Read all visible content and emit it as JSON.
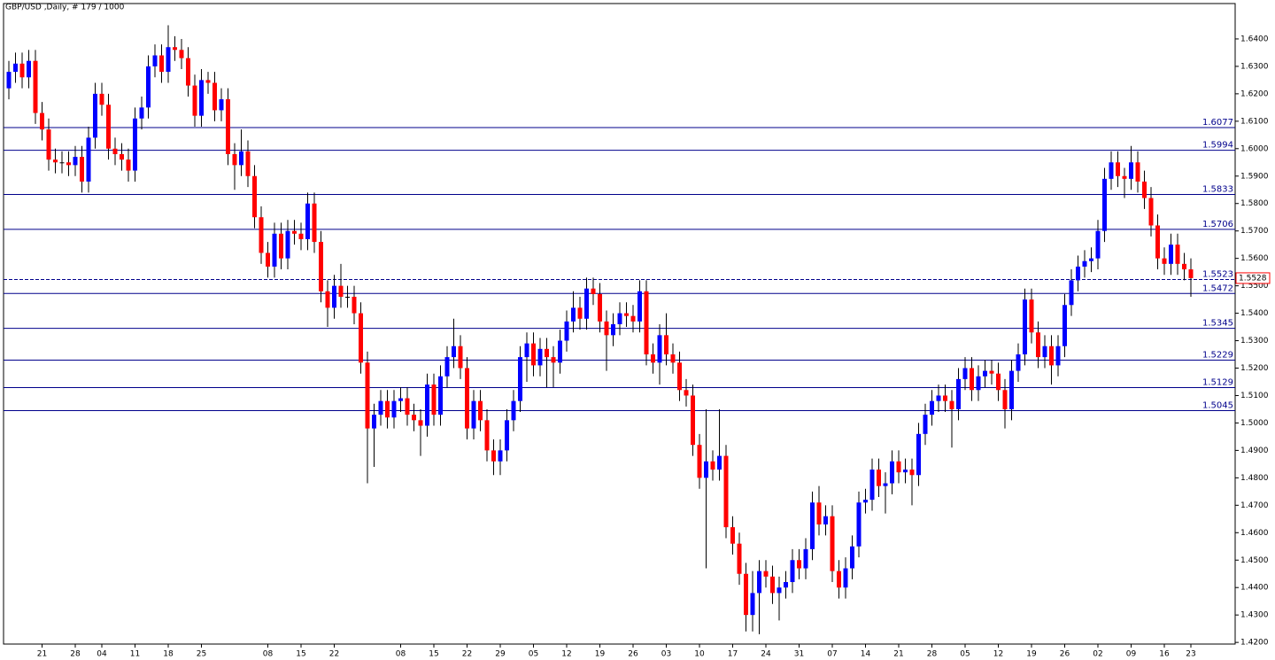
{
  "chart_data": {
    "type": "candlestick",
    "title": "GBP/USD ,Daily, # 179 / 1000",
    "categories": [
      null,
      null,
      null,
      null,
      null,
      "21",
      null,
      null,
      null,
      null,
      "28",
      null,
      null,
      null,
      "04",
      null,
      null,
      null,
      null,
      "11",
      null,
      null,
      null,
      null,
      "18",
      null,
      null,
      null,
      null,
      "25",
      null,
      null,
      null,
      null,
      null,
      null,
      null,
      null,
      null,
      "08",
      null,
      null,
      null,
      null,
      "15",
      null,
      null,
      null,
      null,
      "22",
      null,
      null,
      null,
      null,
      null,
      null,
      null,
      null,
      null,
      "08",
      null,
      null,
      null,
      null,
      "15",
      null,
      null,
      null,
      null,
      "22",
      null,
      null,
      null,
      null,
      "29",
      null,
      null,
      null,
      null,
      "05",
      null,
      null,
      null,
      null,
      "12",
      null,
      null,
      null,
      null,
      "19",
      null,
      null,
      null,
      null,
      "26",
      null,
      null,
      null,
      null,
      "03",
      null,
      null,
      null,
      null,
      "10",
      null,
      null,
      null,
      null,
      "17",
      null,
      null,
      null,
      null,
      "24",
      null,
      null,
      null,
      null,
      "31",
      null,
      null,
      null,
      null,
      "07",
      null,
      null,
      null,
      null,
      "14",
      null,
      null,
      null,
      null,
      "21",
      null,
      null,
      null,
      null,
      "28",
      null,
      null,
      null,
      null,
      "05",
      null,
      null,
      null,
      null,
      "12",
      null,
      null,
      null,
      null,
      "19",
      null,
      null,
      null,
      null,
      "26",
      null,
      null,
      null,
      null,
      "02",
      null,
      null,
      null,
      null,
      "09",
      null,
      null,
      null,
      null,
      "16",
      null,
      null,
      null,
      "23"
    ],
    "open": [
      1.622,
      1.628,
      1.631,
      1.626,
      1.632,
      1.613,
      1.607,
      1.596,
      1.595,
      1.595,
      1.594,
      1.597,
      1.588,
      1.604,
      1.62,
      1.616,
      1.6,
      1.598,
      1.596,
      1.592,
      1.611,
      1.615,
      1.63,
      1.634,
      1.628,
      1.637,
      1.636,
      1.633,
      1.623,
      1.612,
      1.625,
      1.624,
      1.614,
      1.618,
      1.598,
      1.594,
      1.599,
      1.59,
      1.575,
      1.562,
      1.557,
      1.569,
      1.56,
      1.57,
      1.569,
      1.567,
      1.58,
      1.566,
      1.548,
      1.542,
      1.55,
      1.546,
      1.546,
      1.54,
      1.522,
      1.498,
      1.503,
      1.508,
      1.502,
      1.508,
      1.509,
      1.503,
      1.501,
      1.499,
      1.514,
      1.503,
      1.517,
      1.524,
      1.528,
      1.52,
      1.498,
      1.508,
      1.501,
      1.49,
      1.486,
      1.49,
      1.501,
      1.508,
      1.524,
      1.529,
      1.521,
      1.527,
      1.524,
      1.522,
      1.53,
      1.537,
      1.542,
      1.538,
      1.549,
      1.547,
      1.537,
      1.532,
      1.536,
      1.54,
      1.539,
      1.537,
      1.548,
      1.525,
      1.522,
      1.532,
      1.525,
      1.522,
      1.512,
      1.51,
      1.492,
      1.48,
      1.486,
      1.483,
      1.488,
      1.462,
      1.456,
      1.445,
      1.43,
      1.438,
      1.446,
      1.444,
      1.438,
      1.44,
      1.442,
      1.45,
      1.447,
      1.454,
      1.471,
      1.463,
      1.466,
      1.446,
      1.44,
      1.447,
      1.455,
      1.471,
      1.472,
      1.483,
      1.477,
      1.478,
      1.486,
      1.482,
      1.483,
      1.481,
      1.496,
      1.503,
      1.508,
      1.51,
      1.508,
      1.505,
      1.516,
      1.52,
      1.512,
      1.517,
      1.519,
      1.518,
      1.512,
      1.505,
      1.519,
      1.525,
      1.545,
      1.533,
      1.524,
      1.528,
      1.521,
      1.528,
      1.543,
      1.552,
      1.557,
      1.559,
      1.56,
      1.57,
      1.589,
      1.595,
      1.59,
      1.589,
      1.595,
      1.588,
      1.582,
      1.572,
      1.56,
      1.558,
      1.565,
      1.558,
      1.556
    ],
    "high": [
      1.632,
      1.635,
      1.635,
      1.636,
      1.636,
      1.617,
      1.611,
      1.6,
      1.599,
      1.599,
      1.601,
      1.601,
      1.608,
      1.624,
      1.624,
      1.62,
      1.604,
      1.602,
      1.6,
      1.615,
      1.619,
      1.634,
      1.638,
      1.638,
      1.645,
      1.641,
      1.64,
      1.637,
      1.627,
      1.629,
      1.628,
      1.628,
      1.622,
      1.622,
      1.602,
      1.607,
      1.603,
      1.594,
      1.579,
      1.566,
      1.573,
      1.573,
      1.574,
      1.574,
      1.573,
      1.584,
      1.584,
      1.57,
      1.552,
      1.554,
      1.558,
      1.55,
      1.55,
      1.544,
      1.526,
      1.507,
      1.512,
      1.512,
      1.512,
      1.513,
      1.513,
      1.507,
      1.505,
      1.518,
      1.518,
      1.521,
      1.528,
      1.538,
      1.532,
      1.524,
      1.512,
      1.512,
      1.505,
      1.494,
      1.494,
      1.505,
      1.512,
      1.528,
      1.533,
      1.533,
      1.531,
      1.531,
      1.528,
      1.534,
      1.541,
      1.548,
      1.546,
      1.553,
      1.553,
      1.551,
      1.541,
      1.54,
      1.544,
      1.544,
      1.543,
      1.552,
      1.552,
      1.529,
      1.536,
      1.54,
      1.529,
      1.526,
      1.516,
      1.514,
      1.496,
      1.505,
      1.49,
      1.505,
      1.492,
      1.466,
      1.46,
      1.449,
      1.446,
      1.45,
      1.45,
      1.448,
      1.444,
      1.446,
      1.454,
      1.454,
      1.458,
      1.475,
      1.477,
      1.47,
      1.47,
      1.45,
      1.451,
      1.459,
      1.475,
      1.476,
      1.487,
      1.487,
      1.482,
      1.49,
      1.49,
      1.487,
      1.487,
      1.5,
      1.507,
      1.512,
      1.514,
      1.514,
      1.512,
      1.52,
      1.524,
      1.524,
      1.521,
      1.523,
      1.523,
      1.522,
      1.516,
      1.523,
      1.529,
      1.549,
      1.549,
      1.537,
      1.532,
      1.532,
      1.532,
      1.547,
      1.556,
      1.561,
      1.563,
      1.564,
      1.574,
      1.593,
      1.599,
      1.599,
      1.593,
      1.601,
      1.599,
      1.592,
      1.586,
      1.576,
      1.564,
      1.569,
      1.569,
      1.562,
      1.56
    ],
    "low": [
      1.618,
      1.624,
      1.622,
      1.622,
      1.609,
      1.603,
      1.592,
      1.591,
      1.591,
      1.59,
      1.59,
      1.584,
      1.584,
      1.6,
      1.612,
      1.596,
      1.594,
      1.592,
      1.588,
      1.588,
      1.607,
      1.611,
      1.626,
      1.624,
      1.624,
      1.632,
      1.629,
      1.619,
      1.608,
      1.608,
      1.62,
      1.61,
      1.61,
      1.594,
      1.585,
      1.59,
      1.586,
      1.571,
      1.558,
      1.553,
      1.553,
      1.556,
      1.556,
      1.565,
      1.563,
      1.563,
      1.562,
      1.544,
      1.535,
      1.538,
      1.542,
      1.542,
      1.536,
      1.518,
      1.478,
      1.484,
      1.499,
      1.498,
      1.498,
      1.504,
      1.499,
      1.497,
      1.488,
      1.495,
      1.499,
      1.499,
      1.513,
      1.52,
      1.516,
      1.494,
      1.494,
      1.497,
      1.486,
      1.481,
      1.481,
      1.486,
      1.497,
      1.504,
      1.515,
      1.517,
      1.517,
      1.513,
      1.513,
      1.518,
      1.526,
      1.533,
      1.534,
      1.534,
      1.543,
      1.533,
      1.519,
      1.528,
      1.532,
      1.535,
      1.533,
      1.533,
      1.521,
      1.518,
      1.514,
      1.521,
      1.518,
      1.508,
      1.506,
      1.488,
      1.476,
      1.447,
      1.479,
      1.479,
      1.458,
      1.452,
      1.441,
      1.424,
      1.424,
      1.423,
      1.44,
      1.434,
      1.428,
      1.436,
      1.438,
      1.443,
      1.443,
      1.45,
      1.459,
      1.459,
      1.442,
      1.436,
      1.436,
      1.443,
      1.451,
      1.467,
      1.468,
      1.473,
      1.467,
      1.474,
      1.478,
      1.478,
      1.47,
      1.477,
      1.492,
      1.499,
      1.504,
      1.504,
      1.491,
      1.501,
      1.512,
      1.508,
      1.508,
      1.513,
      1.514,
      1.508,
      1.498,
      1.501,
      1.515,
      1.521,
      1.529,
      1.52,
      1.52,
      1.514,
      1.517,
      1.524,
      1.539,
      1.548,
      1.553,
      1.555,
      1.556,
      1.566,
      1.585,
      1.586,
      1.582,
      1.585,
      1.584,
      1.578,
      1.568,
      1.556,
      1.554,
      1.554,
      1.554,
      1.552,
      1.546
    ],
    "close": [
      1.628,
      1.631,
      1.626,
      1.632,
      1.613,
      1.607,
      1.596,
      1.595,
      1.595,
      1.594,
      1.597,
      1.588,
      1.604,
      1.62,
      1.616,
      1.6,
      1.598,
      1.596,
      1.592,
      1.611,
      1.615,
      1.63,
      1.634,
      1.628,
      1.637,
      1.636,
      1.633,
      1.623,
      1.612,
      1.625,
      1.624,
      1.614,
      1.618,
      1.598,
      1.594,
      1.599,
      1.59,
      1.575,
      1.562,
      1.557,
      1.569,
      1.56,
      1.57,
      1.569,
      1.567,
      1.58,
      1.566,
      1.548,
      1.542,
      1.55,
      1.546,
      1.546,
      1.54,
      1.522,
      1.498,
      1.503,
      1.508,
      1.502,
      1.508,
      1.509,
      1.503,
      1.501,
      1.499,
      1.514,
      1.503,
      1.517,
      1.524,
      1.528,
      1.52,
      1.498,
      1.508,
      1.501,
      1.49,
      1.486,
      1.49,
      1.501,
      1.508,
      1.524,
      1.529,
      1.521,
      1.527,
      1.524,
      1.522,
      1.53,
      1.537,
      1.542,
      1.538,
      1.549,
      1.547,
      1.537,
      1.532,
      1.536,
      1.54,
      1.539,
      1.537,
      1.548,
      1.525,
      1.522,
      1.532,
      1.525,
      1.522,
      1.512,
      1.51,
      1.492,
      1.48,
      1.486,
      1.483,
      1.488,
      1.462,
      1.456,
      1.445,
      1.43,
      1.438,
      1.446,
      1.444,
      1.438,
      1.44,
      1.442,
      1.45,
      1.447,
      1.454,
      1.471,
      1.463,
      1.466,
      1.446,
      1.44,
      1.447,
      1.455,
      1.471,
      1.472,
      1.483,
      1.477,
      1.478,
      1.486,
      1.482,
      1.483,
      1.481,
      1.496,
      1.503,
      1.508,
      1.51,
      1.508,
      1.505,
      1.516,
      1.52,
      1.512,
      1.517,
      1.519,
      1.518,
      1.512,
      1.505,
      1.519,
      1.525,
      1.545,
      1.533,
      1.524,
      1.528,
      1.521,
      1.528,
      1.543,
      1.552,
      1.557,
      1.559,
      1.56,
      1.57,
      1.589,
      1.595,
      1.59,
      1.589,
      1.595,
      1.588,
      1.582,
      1.572,
      1.56,
      1.558,
      1.565,
      1.558,
      1.556,
      1.5528
    ],
    "up_color": "#0000ff",
    "down_color": "#ff0000",
    "wick_color": "#000000",
    "ylim": [
      1.4194,
      1.6529
    ],
    "yticks": [
      {
        "value": 1.42,
        "label": "1.4200"
      },
      {
        "value": 1.43,
        "label": "1.4300"
      },
      {
        "value": 1.44,
        "label": "1.4400"
      },
      {
        "value": 1.45,
        "label": "1.4500"
      },
      {
        "value": 1.46,
        "label": "1.4600"
      },
      {
        "value": 1.47,
        "label": "1.4700"
      },
      {
        "value": 1.48,
        "label": "1.4800"
      },
      {
        "value": 1.49,
        "label": "1.4900"
      },
      {
        "value": 1.5,
        "label": "1.5000"
      },
      {
        "value": 1.51,
        "label": "1.5100"
      },
      {
        "value": 1.52,
        "label": "1.5200"
      },
      {
        "value": 1.53,
        "label": "1.5300"
      },
      {
        "value": 1.54,
        "label": "1.5400"
      },
      {
        "value": 1.55,
        "label": "1.5500"
      },
      {
        "value": 1.56,
        "label": "1.5600"
      },
      {
        "value": 1.57,
        "label": "1.5700"
      },
      {
        "value": 1.58,
        "label": "1.5800"
      },
      {
        "value": 1.59,
        "label": "1.5900"
      },
      {
        "value": 1.6,
        "label": "1.6000"
      },
      {
        "value": 1.61,
        "label": "1.6100"
      },
      {
        "value": 1.62,
        "label": "1.6200"
      },
      {
        "value": 1.63,
        "label": "1.6300"
      },
      {
        "value": 1.64,
        "label": "1.6400"
      }
    ],
    "levels": [
      1.6077,
      1.5994,
      1.5833,
      1.5706,
      1.5523,
      1.5472,
      1.5345,
      1.5229,
      1.5129,
      1.5045
    ],
    "level_styles": [
      "solid",
      "solid",
      "solid",
      "solid",
      "dashed",
      "solid",
      "solid",
      "solid",
      "solid",
      "solid"
    ],
    "level_color": "#00008b",
    "last_price_color": "#ff0000"
  }
}
